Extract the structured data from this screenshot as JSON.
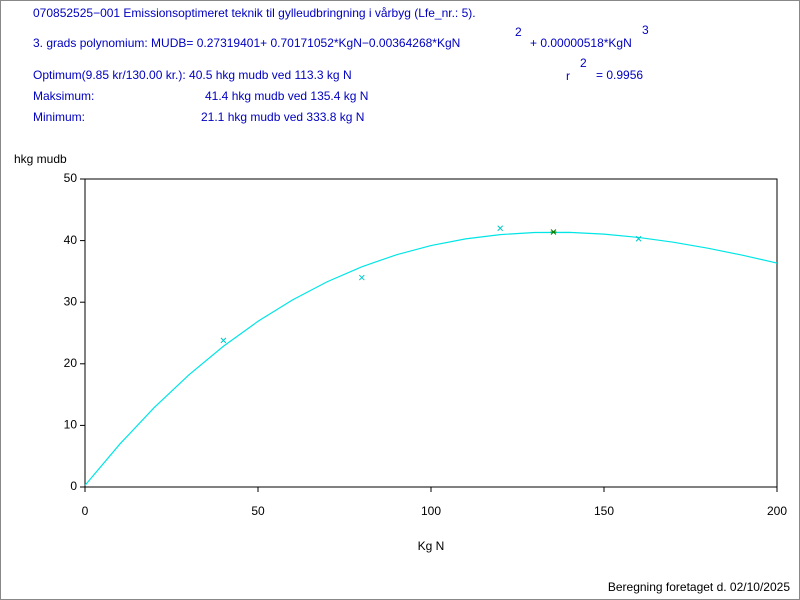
{
  "chart_data": {
    "type": "scatter",
    "annotations": [
      "070852525−001 Emissionsoptimeret teknik til gylleudbringning i vårbyg (Lfe_nr.: 5).",
      "3. grads polynomium: MUDB= 0.27319401+ 0.70171052*KgN−0.00364268*KgN",
      "2",
      "+ 0.00000518*KgN",
      "3",
      "Optimum(9.85 kr/130.00 kr.): 40.5 hkg mudb ved 113.3 kg N",
      "r",
      "2",
      "= 0.9956",
      "Maksimum:",
      "41.4 hkg mudb ved 135.4 kg N",
      "Minimum:",
      "21.1 hkg mudb ved 333.8 kg N"
    ],
    "footer": "Beregning foretaget d. 02/10/2025",
    "x_label": "Kg N",
    "y_label": "hkg mudb",
    "xlim": [
      0,
      200
    ],
    "xticks": [
      0,
      50,
      100,
      150,
      200
    ],
    "ylim": [
      0,
      50
    ],
    "yticks": [
      0,
      10,
      20,
      30,
      40,
      50
    ],
    "curve": {
      "color": "#00e5e5",
      "x": [
        0,
        10,
        20,
        30,
        40,
        50,
        60,
        70,
        80,
        90,
        100,
        110,
        120,
        130,
        140,
        150,
        160,
        170,
        180,
        190,
        200
      ],
      "values": [
        0.27,
        6.93,
        12.89,
        18.19,
        22.85,
        26.9,
        30.38,
        33.32,
        35.75,
        37.7,
        39.2,
        40.28,
        40.97,
        41.32,
        41.33,
        41.05,
        40.51,
        39.74,
        38.77,
        37.63,
        36.35
      ]
    },
    "series": [
      {
        "color": "#00c8c8",
        "x": [
          40,
          80,
          120,
          160
        ],
        "values": [
          23.8,
          34,
          42,
          40.3
        ]
      },
      {
        "color": "#008000",
        "x": [
          135.4
        ],
        "values": [
          41.4
        ]
      }
    ]
  }
}
